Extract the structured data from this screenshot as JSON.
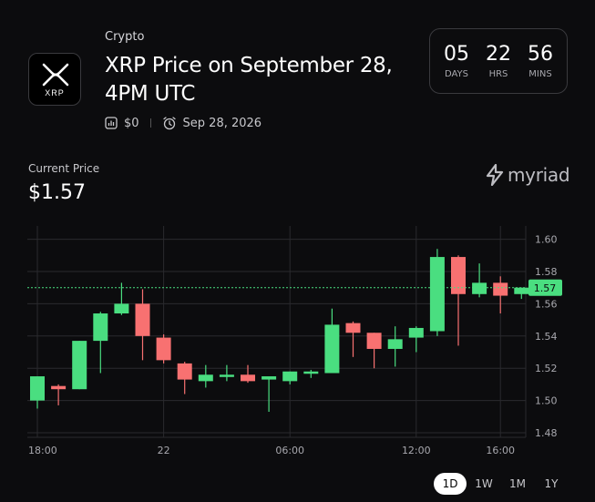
{
  "header": {
    "category": "Crypto",
    "title": "XRP Price on September 28, 4PM UTC",
    "volume": "$0",
    "date": "Sep 28, 2026",
    "logo_text": "XRP"
  },
  "countdown": [
    {
      "value": "05",
      "label": "DAYS"
    },
    {
      "value": "22",
      "label": "HRS"
    },
    {
      "value": "56",
      "label": "MINS"
    }
  ],
  "price": {
    "label": "Current Price",
    "value": "$1.57"
  },
  "brand": {
    "name": "myriad"
  },
  "timeframes": [
    {
      "label": "1D",
      "active": true
    },
    {
      "label": "1W",
      "active": false
    },
    {
      "label": "1M",
      "active": false
    },
    {
      "label": "1Y",
      "active": false
    }
  ],
  "colors": {
    "up": "#4ade80",
    "down": "#f87171",
    "current": "#4ade80",
    "grid": "#2a2a2e"
  },
  "chart_data": {
    "type": "candlestick",
    "x_ticks": [
      "18:00",
      "22",
      "06:00",
      "12:00",
      "16:00"
    ],
    "x_tick_positions": [
      0,
      6,
      12,
      18,
      22
    ],
    "y_ticks": [
      "1.60",
      "1.58",
      "1.56",
      "1.54",
      "1.52",
      "1.50",
      "1.48"
    ],
    "ylim": [
      1.48,
      1.6
    ],
    "current_price": 1.57,
    "current_label": "1.57",
    "candles": [
      {
        "o": 1.5,
        "h": 1.515,
        "l": 1.495,
        "c": 1.515
      },
      {
        "o": 1.509,
        "h": 1.51,
        "l": 1.497,
        "c": 1.507
      },
      {
        "o": 1.507,
        "h": 1.537,
        "l": 1.507,
        "c": 1.537
      },
      {
        "o": 1.537,
        "h": 1.555,
        "l": 1.517,
        "c": 1.554
      },
      {
        "o": 1.554,
        "h": 1.573,
        "l": 1.553,
        "c": 1.56
      },
      {
        "o": 1.56,
        "h": 1.569,
        "l": 1.525,
        "c": 1.54
      },
      {
        "o": 1.539,
        "h": 1.541,
        "l": 1.523,
        "c": 1.525
      },
      {
        "o": 1.523,
        "h": 1.524,
        "l": 1.504,
        "c": 1.513
      },
      {
        "o": 1.512,
        "h": 1.522,
        "l": 1.508,
        "c": 1.516
      },
      {
        "o": 1.515,
        "h": 1.522,
        "l": 1.512,
        "c": 1.516
      },
      {
        "o": 1.516,
        "h": 1.522,
        "l": 1.511,
        "c": 1.512
      },
      {
        "o": 1.513,
        "h": 1.514,
        "l": 1.493,
        "c": 1.515
      },
      {
        "o": 1.512,
        "h": 1.518,
        "l": 1.51,
        "c": 1.518
      },
      {
        "o": 1.518,
        "h": 1.519,
        "l": 1.514,
        "c": 1.518
      },
      {
        "o": 1.517,
        "h": 1.557,
        "l": 1.517,
        "c": 1.547
      },
      {
        "o": 1.548,
        "h": 1.549,
        "l": 1.527,
        "c": 1.542
      },
      {
        "o": 1.542,
        "h": 1.542,
        "l": 1.52,
        "c": 1.532
      },
      {
        "o": 1.532,
        "h": 1.546,
        "l": 1.521,
        "c": 1.538
      },
      {
        "o": 1.539,
        "h": 1.546,
        "l": 1.53,
        "c": 1.545
      },
      {
        "o": 1.543,
        "h": 1.594,
        "l": 1.54,
        "c": 1.589
      },
      {
        "o": 1.589,
        "h": 1.59,
        "l": 1.534,
        "c": 1.566
      },
      {
        "o": 1.566,
        "h": 1.585,
        "l": 1.564,
        "c": 1.573
      },
      {
        "o": 1.573,
        "h": 1.577,
        "l": 1.554,
        "c": 1.565
      },
      {
        "o": 1.566,
        "h": 1.57,
        "l": 1.563,
        "c": 1.57
      }
    ]
  }
}
